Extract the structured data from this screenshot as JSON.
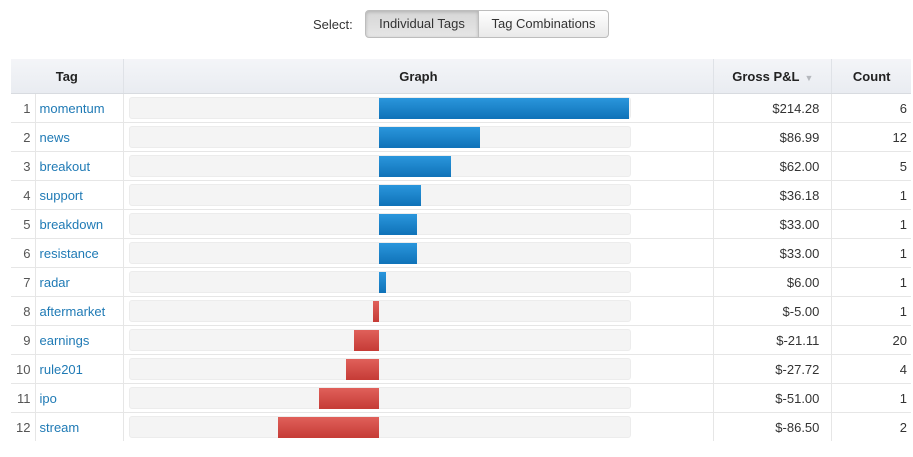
{
  "selector": {
    "label": "Select:",
    "options": [
      "Individual Tags",
      "Tag Combinations"
    ],
    "active": "Individual Tags"
  },
  "table": {
    "headers": {
      "tag": "Tag",
      "graph": "Graph",
      "pnl": "Gross P&L",
      "count": "Count"
    },
    "sort_column": "Gross P&L",
    "sort_direction": "descending",
    "rows": [
      {
        "num": "1",
        "tag": "momentum",
        "pnl": "$214.28",
        "count": "6",
        "value": 214.28
      },
      {
        "num": "2",
        "tag": "news",
        "pnl": "$86.99",
        "count": "12",
        "value": 86.99
      },
      {
        "num": "3",
        "tag": "breakout",
        "pnl": "$62.00",
        "count": "5",
        "value": 62.0
      },
      {
        "num": "4",
        "tag": "support",
        "pnl": "$36.18",
        "count": "1",
        "value": 36.18
      },
      {
        "num": "5",
        "tag": "breakdown",
        "pnl": "$33.00",
        "count": "1",
        "value": 33.0
      },
      {
        "num": "6",
        "tag": "resistance",
        "pnl": "$33.00",
        "count": "1",
        "value": 33.0
      },
      {
        "num": "7",
        "tag": "radar",
        "pnl": "$6.00",
        "count": "1",
        "value": 6.0
      },
      {
        "num": "8",
        "tag": "aftermarket",
        "pnl": "$-5.00",
        "count": "1",
        "value": -5.0
      },
      {
        "num": "9",
        "tag": "earnings",
        "pnl": "$-21.11",
        "count": "20",
        "value": -21.11
      },
      {
        "num": "10",
        "tag": "rule201",
        "pnl": "$-27.72",
        "count": "4",
        "value": -27.72
      },
      {
        "num": "11",
        "tag": "ipo",
        "pnl": "$-51.00",
        "count": "1",
        "value": -51.0
      },
      {
        "num": "12",
        "tag": "stream",
        "pnl": "$-86.50",
        "count": "2",
        "value": -86.5
      }
    ]
  },
  "colors": {
    "positive_bar": "#1a82c8",
    "negative_bar": "#d44a45",
    "tag_link": "#1f7ab5"
  }
}
